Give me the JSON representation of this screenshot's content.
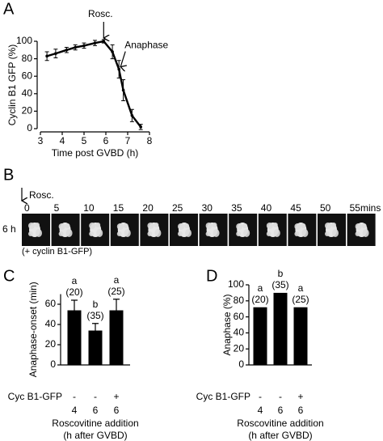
{
  "panels": {
    "a": "A",
    "b": "B",
    "c": "C",
    "d": "D"
  },
  "timelapse": {
    "annotation": "Rosc.",
    "row_label": "6 h",
    "times": [
      0,
      5,
      10,
      15,
      20,
      25,
      30,
      35,
      40,
      45,
      50,
      55
    ],
    "unit": "mins",
    "caption": "(+ cyclin B1-GFP)"
  },
  "chart_data": [
    {
      "type": "line",
      "xlabel": "Time post GVBD (h)",
      "ylabel": "Cyclin B1 GFP (%)",
      "x": [
        3.3,
        3.7,
        4.2,
        4.6,
        5.0,
        5.5,
        5.9,
        6.3,
        6.6,
        6.8,
        7.2,
        7.6
      ],
      "series": [
        {
          "color": "#000000",
          "values": [
            83,
            86,
            90,
            93,
            95,
            98,
            100,
            88,
            68,
            44,
            15,
            2
          ],
          "errors": [
            5,
            5,
            3,
            3,
            3,
            3,
            2,
            8,
            10,
            12,
            7,
            3
          ]
        }
      ],
      "xlim": [
        3,
        8
      ],
      "xticks": [
        3,
        4,
        5,
        6,
        7,
        8
      ],
      "ylim": [
        0,
        100
      ],
      "yticks": [
        0,
        20,
        40,
        60,
        80,
        100
      ],
      "annotations": [
        "Rosc.",
        "Anaphase"
      ]
    },
    {
      "type": "bar",
      "ylabel": "Anaphase-onset (min)",
      "row_label": "Cyc B1-GFP",
      "gfp": [
        "-",
        "-",
        "+"
      ],
      "categories": [
        "4",
        "6",
        "6"
      ],
      "xlabel": "Roscovitine addition",
      "xlabel2": "(h after GVBD)",
      "values": [
        54,
        34,
        54
      ],
      "errors": [
        10,
        7,
        11
      ],
      "color": "#000000",
      "significance": [
        "a",
        "b",
        "a"
      ],
      "n_labels": [
        "(20)",
        "(35)",
        "(25)"
      ],
      "ylim": [
        0,
        70
      ],
      "yticks": [
        0,
        20,
        40,
        60
      ]
    },
    {
      "type": "bar",
      "ylabel": "Anaphase (%)",
      "row_label": "Cyc B1-GFP",
      "gfp": [
        "-",
        "-",
        "+"
      ],
      "categories": [
        "4",
        "6",
        "6"
      ],
      "xlabel": "Roscovitine addition",
      "xlabel2": "(h after GVBD)",
      "values": [
        72,
        90,
        72
      ],
      "color": "#000000",
      "significance": [
        "a",
        "b",
        "a"
      ],
      "n_labels": [
        "(20)",
        "(35)",
        "(25)"
      ],
      "ylim": [
        0,
        100
      ],
      "yticks": [
        0,
        20,
        40,
        60,
        80,
        100
      ]
    }
  ]
}
